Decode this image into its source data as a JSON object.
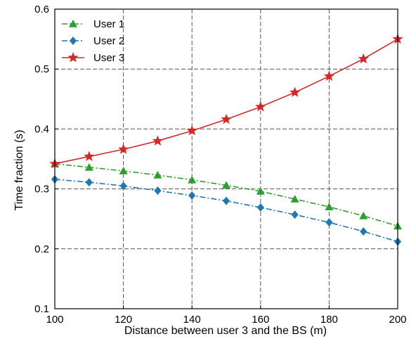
{
  "chart_data": {
    "type": "line",
    "xlabel": "Distance between user 3 and the BS (m)",
    "ylabel": "Time fraction (s)",
    "xlim": [
      100,
      200
    ],
    "ylim": [
      0.1,
      0.6
    ],
    "xticks": [
      100,
      120,
      140,
      160,
      180,
      200
    ],
    "yticks": [
      0.1,
      0.2,
      0.3,
      0.4,
      0.5,
      0.6
    ],
    "x": [
      100,
      110,
      120,
      130,
      140,
      150,
      160,
      170,
      180,
      190,
      200
    ],
    "grid": true,
    "legend_position": "top-left",
    "series": [
      {
        "name": "User 1",
        "color": "#2ca02c",
        "marker": "triangle-up",
        "linestyle": "dash-dot",
        "values": [
          0.342,
          0.336,
          0.33,
          0.323,
          0.315,
          0.306,
          0.296,
          0.283,
          0.27,
          0.255,
          0.238
        ]
      },
      {
        "name": "User 2",
        "color": "#1f77b4",
        "marker": "diamond",
        "linestyle": "dash-dot",
        "values": [
          0.316,
          0.311,
          0.305,
          0.297,
          0.289,
          0.28,
          0.269,
          0.257,
          0.244,
          0.229,
          0.212
        ]
      },
      {
        "name": "User 3",
        "color": "#d62728",
        "marker": "star",
        "linestyle": "solid",
        "values": [
          0.342,
          0.354,
          0.366,
          0.38,
          0.397,
          0.416,
          0.437,
          0.461,
          0.488,
          0.517,
          0.55
        ]
      }
    ]
  }
}
